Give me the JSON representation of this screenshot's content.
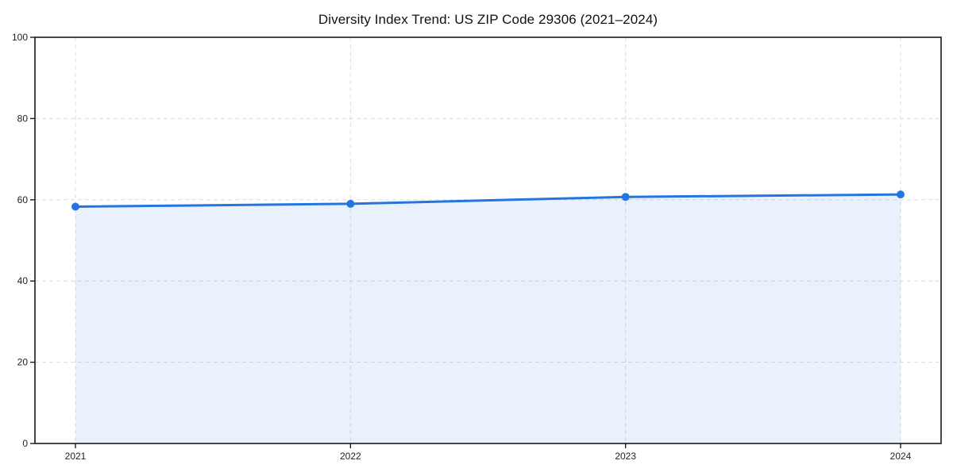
{
  "chart_data": {
    "type": "area",
    "title": "Diversity Index Trend: US ZIP Code 29306 (2021–2024)",
    "xlabel": "",
    "ylabel": "",
    "x_tick_labels": [
      "2021",
      "2022",
      "2023",
      "2024"
    ],
    "x": [
      2021,
      2022,
      2023,
      2024
    ],
    "series": [
      {
        "name": "Diversity Index",
        "values": [
          58.3,
          59.0,
          60.7,
          61.3
        ]
      }
    ],
    "ylim": [
      0,
      100
    ],
    "y_ticks": [
      0,
      20,
      40,
      60,
      80,
      100
    ],
    "grid": "dashed gridlines on both axes",
    "legend_position": "none",
    "marker": "circle",
    "line_width": 3,
    "colors": {
      "line": "#2575e0",
      "marker": "#2575e0",
      "fill": "#2575e0",
      "fill_opacity": 0.1,
      "grid": "#dcdcdc",
      "spine": "#1a1a1a",
      "tick_label": "#222222",
      "title": "#111111",
      "background": "#ffffff"
    }
  }
}
